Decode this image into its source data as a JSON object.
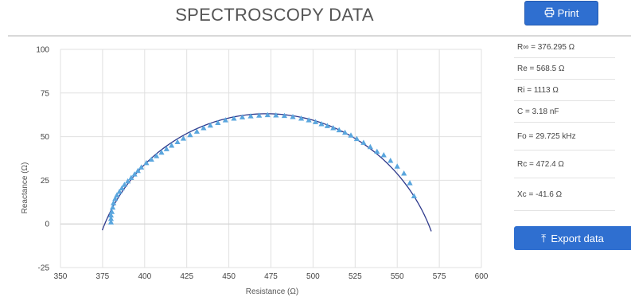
{
  "header": {
    "title": "SPECTROSCOPY DATA",
    "print_label": "Print"
  },
  "params": [
    "R∞ = 376.295 Ω",
    "Re = 568.5 Ω",
    "Ri = 1113 Ω",
    "C = 3.18 nF",
    "Fo = 29.725 kHz",
    "Rc = 472.4 Ω",
    "Xc = -41.6 Ω"
  ],
  "export_label": "Export data",
  "colors": {
    "accent": "#2f6fd0",
    "measured": "#5aa6de",
    "fit": "#2e3a8c",
    "grid": "#e0e0e0"
  },
  "chart_data": {
    "type": "scatter",
    "xlabel": "Resistance (Ω)",
    "ylabel": "Reactance (Ω)",
    "xlim": [
      350,
      600
    ],
    "ylim": [
      -25,
      100
    ],
    "xticks": [
      350,
      375,
      400,
      425,
      450,
      475,
      500,
      525,
      550,
      575,
      600
    ],
    "yticks": [
      -25,
      0,
      25,
      50,
      75,
      100
    ],
    "grid": true,
    "series": [
      {
        "kind": "measured",
        "marker": "triangle",
        "x": [
          380,
          380,
          380,
          380.5,
          381,
          381.5,
          382.5,
          383.5,
          385,
          386.5,
          388,
          390,
          392,
          394,
          396,
          398,
          401,
          404,
          407,
          410,
          413,
          416,
          419.5,
          423,
          427,
          431,
          435,
          439,
          443.5,
          448,
          453,
          458,
          463,
          468,
          473,
          478,
          483,
          488,
          493,
          497.5,
          501.5,
          505,
          508.5,
          512,
          515.5,
          519,
          522.5,
          526,
          530,
          534,
          538,
          542,
          546,
          550,
          554,
          557.5,
          560
        ],
        "y": [
          1,
          3,
          5,
          7,
          9.5,
          12,
          14.5,
          16.5,
          18.5,
          20.5,
          22.5,
          24.5,
          26.5,
          28.5,
          30.5,
          32.5,
          35,
          37,
          39,
          41,
          43,
          45,
          47,
          49,
          51,
          53,
          55,
          56.5,
          58,
          59.5,
          60.5,
          61.2,
          61.8,
          62.2,
          62.5,
          62.3,
          62,
          61.4,
          60.5,
          59.5,
          58.5,
          57.3,
          56.2,
          55,
          53.8,
          52.4,
          50.8,
          48.8,
          46.6,
          44.2,
          41.5,
          39.5,
          36.3,
          33,
          29,
          23.5,
          16
        ]
      },
      {
        "kind": "fit",
        "center": [
          472.4,
          -41.6
        ],
        "r_inf": 376.295,
        "r_e": 568.5
      }
    ]
  }
}
